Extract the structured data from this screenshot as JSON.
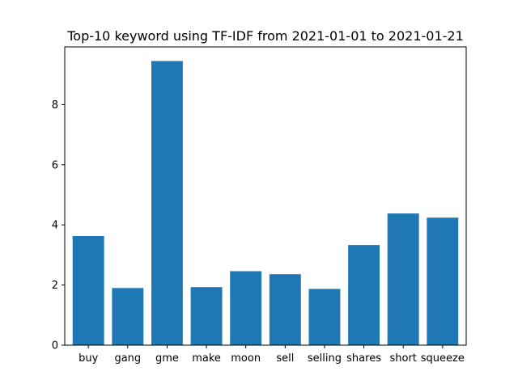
{
  "chart_data": {
    "type": "bar",
    "title": "Top-10 keyword using TF-IDF from 2021-01-01 to 2021-01-21",
    "xlabel": "",
    "ylabel": "",
    "categories": [
      "buy",
      "gang",
      "gme",
      "make",
      "moon",
      "sell",
      "selling",
      "shares",
      "short",
      "squeeze"
    ],
    "values": [
      3.63,
      1.9,
      9.45,
      1.93,
      2.46,
      2.36,
      1.87,
      3.33,
      4.38,
      4.24
    ],
    "ylim": [
      0,
      9.92
    ],
    "yticks": [
      0,
      2,
      4,
      6,
      8
    ],
    "grid": false,
    "bar_color": "#1f77b4"
  }
}
